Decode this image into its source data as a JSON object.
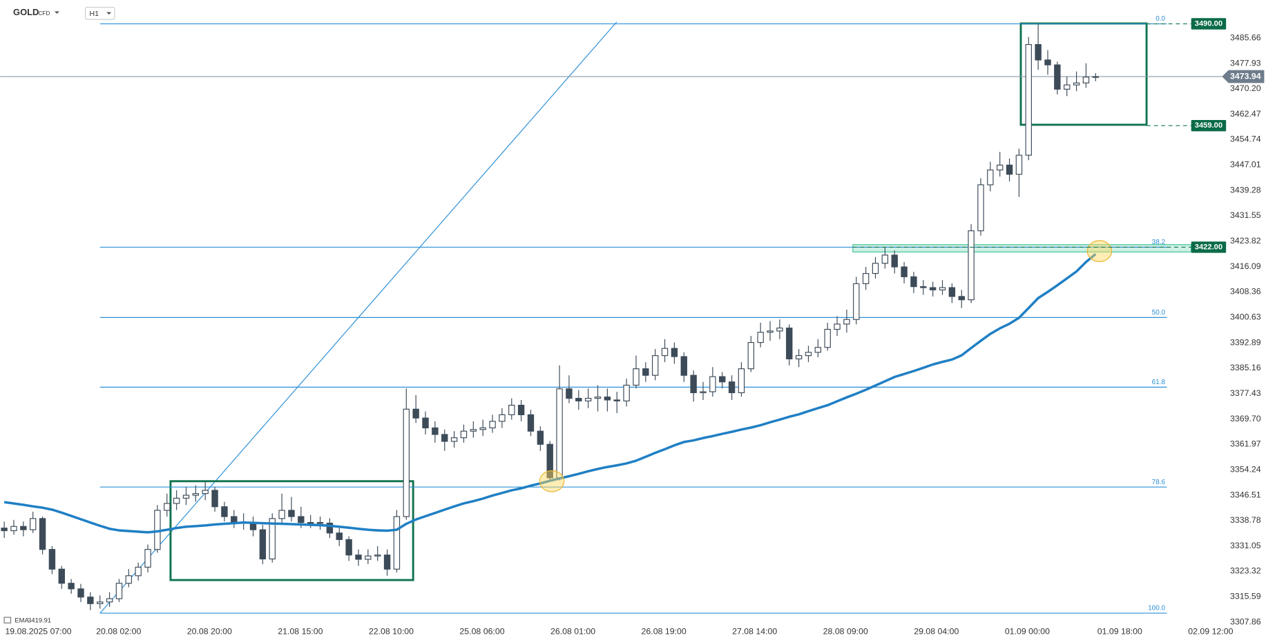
{
  "header": {
    "symbol": "GOLD",
    "badge": "CFD",
    "timeframe": "H1"
  },
  "chart_data": {
    "type": "candlestick",
    "ohlc": [
      [
        3336.5,
        3338.5,
        3333.5,
        3335.7
      ],
      [
        3335.7,
        3339,
        3334.5,
        3337
      ],
      [
        3337,
        3338.5,
        3334,
        3336
      ],
      [
        3336,
        3341.5,
        3335,
        3339.4
      ],
      [
        3339.4,
        3340,
        3328.5,
        3330
      ],
      [
        3330,
        3331,
        3322.5,
        3324
      ],
      [
        3324,
        3325,
        3318,
        3319.7
      ],
      [
        3319.7,
        3321,
        3316.5,
        3318
      ],
      [
        3318,
        3319.5,
        3314,
        3315.5
      ],
      [
        3315.5,
        3317,
        3311.5,
        3313.5
      ],
      [
        3313.5,
        3316,
        3312,
        3314
      ],
      [
        3314,
        3317,
        3312.5,
        3315
      ],
      [
        3315,
        3321,
        3314,
        3319.7
      ],
      [
        3319.7,
        3324,
        3318.5,
        3322
      ],
      [
        3322,
        3326,
        3320.5,
        3324.6
      ],
      [
        3324.6,
        3331.5,
        3323,
        3330
      ],
      [
        3330,
        3343.5,
        3329,
        3341.9
      ],
      [
        3341.9,
        3347,
        3340,
        3344
      ],
      [
        3344,
        3348,
        3342,
        3345.6
      ],
      [
        3345.6,
        3349,
        3343.5,
        3346.5
      ],
      [
        3346.5,
        3349.5,
        3344.5,
        3347
      ],
      [
        3347,
        3350.5,
        3345,
        3348
      ],
      [
        3348,
        3349,
        3341.5,
        3343
      ],
      [
        3343,
        3344.5,
        3338.5,
        3340
      ],
      [
        3340,
        3342,
        3336.5,
        3338.2
      ],
      [
        3338.2,
        3341,
        3336,
        3338
      ],
      [
        3338,
        3340,
        3334,
        3336
      ],
      [
        3336,
        3337.5,
        3325.5,
        3327.1
      ],
      [
        3327.1,
        3341,
        3326,
        3339.4
      ],
      [
        3339.4,
        3347,
        3338,
        3341.9
      ],
      [
        3341.9,
        3346,
        3338.5,
        3340
      ],
      [
        3340,
        3343,
        3336.5,
        3338.2
      ],
      [
        3338.2,
        3340.5,
        3336.5,
        3338.2
      ],
      [
        3338.2,
        3340,
        3336,
        3338
      ],
      [
        3338,
        3339.5,
        3333.5,
        3335
      ],
      [
        3335,
        3336.5,
        3331,
        3333
      ],
      [
        3333,
        3334,
        3326.5,
        3328.3
      ],
      [
        3328.3,
        3330,
        3325,
        3327
      ],
      [
        3327,
        3330,
        3325.5,
        3328
      ],
      [
        3328,
        3331,
        3326.5,
        3328.3
      ],
      [
        3328.3,
        3330,
        3322,
        3324
      ],
      [
        3324,
        3342,
        3323,
        3340
      ],
      [
        3340,
        3379,
        3339,
        3372.7
      ],
      [
        3372.7,
        3377,
        3368.5,
        3370
      ],
      [
        3370,
        3372,
        3365,
        3367
      ],
      [
        3367,
        3369,
        3362.5,
        3365
      ],
      [
        3365,
        3366.5,
        3360,
        3362.9
      ],
      [
        3362.9,
        3366,
        3361,
        3364
      ],
      [
        3364,
        3368,
        3362.5,
        3366
      ],
      [
        3366,
        3369,
        3364,
        3366.5
      ],
      [
        3366.5,
        3369.5,
        3364.5,
        3367
      ],
      [
        3367,
        3371,
        3365.5,
        3369
      ],
      [
        3369,
        3373,
        3367,
        3371
      ],
      [
        3371,
        3376,
        3369.5,
        3373.9
      ],
      [
        3373.9,
        3375.5,
        3369,
        3371
      ],
      [
        3371,
        3372.5,
        3364.5,
        3366
      ],
      [
        3366,
        3367.5,
        3360,
        3362
      ],
      [
        3362,
        3363,
        3350.5,
        3351.8
      ],
      [
        3351.8,
        3386,
        3351,
        3378.9
      ],
      [
        3378.9,
        3383,
        3374.5,
        3376
      ],
      [
        3376,
        3378.5,
        3372.5,
        3375.2
      ],
      [
        3375.2,
        3379,
        3373,
        3376
      ],
      [
        3376,
        3380,
        3372,
        3376.4
      ],
      [
        3376.4,
        3379,
        3372,
        3375.5
      ],
      [
        3375.5,
        3378,
        3371.5,
        3375.2
      ],
      [
        3375.2,
        3382,
        3373.5,
        3380
      ],
      [
        3380,
        3389,
        3379,
        3385
      ],
      [
        3385,
        3387,
        3381,
        3383
      ],
      [
        3383,
        3391,
        3381.5,
        3389
      ],
      [
        3389,
        3394,
        3387,
        3391.2
      ],
      [
        3391.2,
        3393,
        3386.5,
        3388.7
      ],
      [
        3388.7,
        3390,
        3381,
        3383
      ],
      [
        3383,
        3384.5,
        3375,
        3377.7
      ],
      [
        3377.7,
        3381,
        3375.5,
        3378
      ],
      [
        3378,
        3385.5,
        3376.5,
        3382.6
      ],
      [
        3382.6,
        3384,
        3379,
        3381
      ],
      [
        3381,
        3383,
        3375.5,
        3377.7
      ],
      [
        3377.7,
        3387,
        3376.5,
        3385
      ],
      [
        3385,
        3395,
        3384,
        3393
      ],
      [
        3393,
        3399,
        3391.5,
        3396.1
      ],
      [
        3396.1,
        3399.5,
        3393.5,
        3396.5
      ],
      [
        3396.5,
        3400,
        3394,
        3397.4
      ],
      [
        3397.4,
        3398.5,
        3386,
        3388
      ],
      [
        3388,
        3391,
        3385.5,
        3389
      ],
      [
        3389,
        3392,
        3387,
        3390
      ],
      [
        3390,
        3394,
        3388.5,
        3391.5
      ],
      [
        3391.5,
        3399,
        3390.5,
        3397
      ],
      [
        3397,
        3401,
        3395,
        3398.6
      ],
      [
        3398.6,
        3403,
        3396,
        3400
      ],
      [
        3400,
        3413,
        3398.5,
        3410.9
      ],
      [
        3410.9,
        3416,
        3409,
        3414
      ],
      [
        3414,
        3419,
        3412.5,
        3417.1
      ],
      [
        3417.1,
        3422,
        3415.5,
        3419.6
      ],
      [
        3419.6,
        3421,
        3414,
        3416
      ],
      [
        3416,
        3417.5,
        3411,
        3413
      ],
      [
        3413,
        3414.5,
        3408,
        3410
      ],
      [
        3410,
        3412,
        3407.5,
        3409.7
      ],
      [
        3409.7,
        3411.5,
        3407,
        3409
      ],
      [
        3409,
        3412,
        3407.5,
        3409.7
      ],
      [
        3409.7,
        3411,
        3405,
        3407
      ],
      [
        3407,
        3409,
        3403.5,
        3406
      ],
      [
        3406,
        3429,
        3405,
        3427
      ],
      [
        3427,
        3443,
        3425.5,
        3441
      ],
      [
        3441,
        3448,
        3439,
        3445.5
      ],
      [
        3445.5,
        3451,
        3443.5,
        3447
      ],
      [
        3447,
        3449,
        3442,
        3444.2
      ],
      [
        3444.2,
        3452,
        3437.3,
        3450
      ],
      [
        3450,
        3486,
        3448.5,
        3483.7
      ],
      [
        3483.7,
        3490,
        3476,
        3479
      ],
      [
        3479,
        3482,
        3474.5,
        3477.5
      ],
      [
        3477.5,
        3478.5,
        3468.5,
        3470.1
      ],
      [
        3470.1,
        3474,
        3468,
        3471.4
      ],
      [
        3471.4,
        3475.5,
        3469.5,
        3472
      ],
      [
        3472,
        3478,
        3470.5,
        3473.8
      ],
      [
        3473.8,
        3475,
        3472.5,
        3473.94
      ]
    ],
    "bull_color": "#ffffff",
    "bear_color": "#3d4b59",
    "ema": {
      "name": "EMA",
      "last": 3419.91,
      "color": "#1f7fc4",
      "values": [
        3344.4,
        3344.0,
        3343.6,
        3343.1,
        3342.7,
        3342.1,
        3341.2,
        3340.2,
        3339.2,
        3338.2,
        3337.2,
        3336.3,
        3335.8,
        3335.6,
        3335.4,
        3335.2,
        3335.5,
        3336.0,
        3336.5,
        3336.9,
        3337.1,
        3337.3,
        3337.6,
        3337.8,
        3338.0,
        3338.2,
        3338.1,
        3338.0,
        3337.9,
        3337.8,
        3337.7,
        3337.6,
        3337.5,
        3337.4,
        3337.2,
        3336.9,
        3336.6,
        3336.3,
        3336.0,
        3335.8,
        3335.7,
        3336.0,
        3337.8,
        3339.1,
        3340.1,
        3341.1,
        3342.1,
        3343.1,
        3344.0,
        3344.7,
        3345.5,
        3346.4,
        3347.2,
        3348.0,
        3348.6,
        3349.4,
        3350.1,
        3350.9,
        3351.6,
        3352.3,
        3353.0,
        3353.8,
        3354.5,
        3355.1,
        3355.6,
        3356.2,
        3357.0,
        3358.2,
        3359.4,
        3360.5,
        3361.7,
        3362.7,
        3363.2,
        3363.9,
        3364.5,
        3365.2,
        3365.8,
        3366.5,
        3367.1,
        3367.8,
        3368.7,
        3369.5,
        3370.4,
        3371.1,
        3372.1,
        3373.0,
        3373.9,
        3375.1,
        3376.3,
        3377.4,
        3378.6,
        3379.9,
        3381.2,
        3382.5,
        3383.4,
        3384.3,
        3385.3,
        3386.3,
        3387.1,
        3387.8,
        3389.1,
        3391.3,
        3393.5,
        3395.6,
        3397.3,
        3398.7,
        3400.5,
        3403.5,
        3406.5,
        3408.4,
        3410.4,
        3412.5,
        3414.6,
        3417.5,
        3419.91
      ]
    },
    "ylim": [
      3302.43,
      3497.25
    ],
    "yticks": [
      3485.66,
      3477.93,
      {
        "value": 3470.2,
        "label": "3470.20"
      },
      3462.47,
      3454.74,
      3447.01,
      3439.28,
      3431.55,
      3423.82,
      3416.09,
      3408.36,
      3400.63,
      3392.89,
      3385.16,
      3377.43,
      {
        "value": 3369.7,
        "label": "3369.70"
      },
      3361.97,
      3354.24,
      3346.51,
      3338.78,
      3331.05,
      3323.32,
      3315.59,
      3307.86
    ],
    "x_labels": [
      "19.08.2025 07:00",
      "20.08 02:00",
      "20.08 20:00",
      "21.08 15:00",
      "22.08 10:00",
      "25.08 06:00",
      "26.08 01:00",
      "26.08 19:00",
      "27.08 14:00",
      "28.08 09:00",
      "29.08 04:00",
      "01.09 00:00",
      "01.09 18:00",
      "02.09 12:00"
    ],
    "fib_levels": [
      {
        "label": "0.0",
        "value": 3490
      },
      {
        "label": "38.2",
        "value": 3422
      },
      {
        "label": "50.0",
        "value": 3400.6
      },
      {
        "label": "61.8",
        "value": 3379.4
      },
      {
        "label": "78.6",
        "value": 3349
      },
      {
        "label": "100.0",
        "value": 3310.6
      }
    ],
    "fib_color": "#2a8fd8",
    "price_labels": [
      {
        "value": 3490,
        "label": "3490.00"
      },
      {
        "value": 3459,
        "label": "3459.00"
      },
      {
        "value": 3422,
        "label": "3422.00"
      }
    ],
    "last_price": 3473.94
  }
}
